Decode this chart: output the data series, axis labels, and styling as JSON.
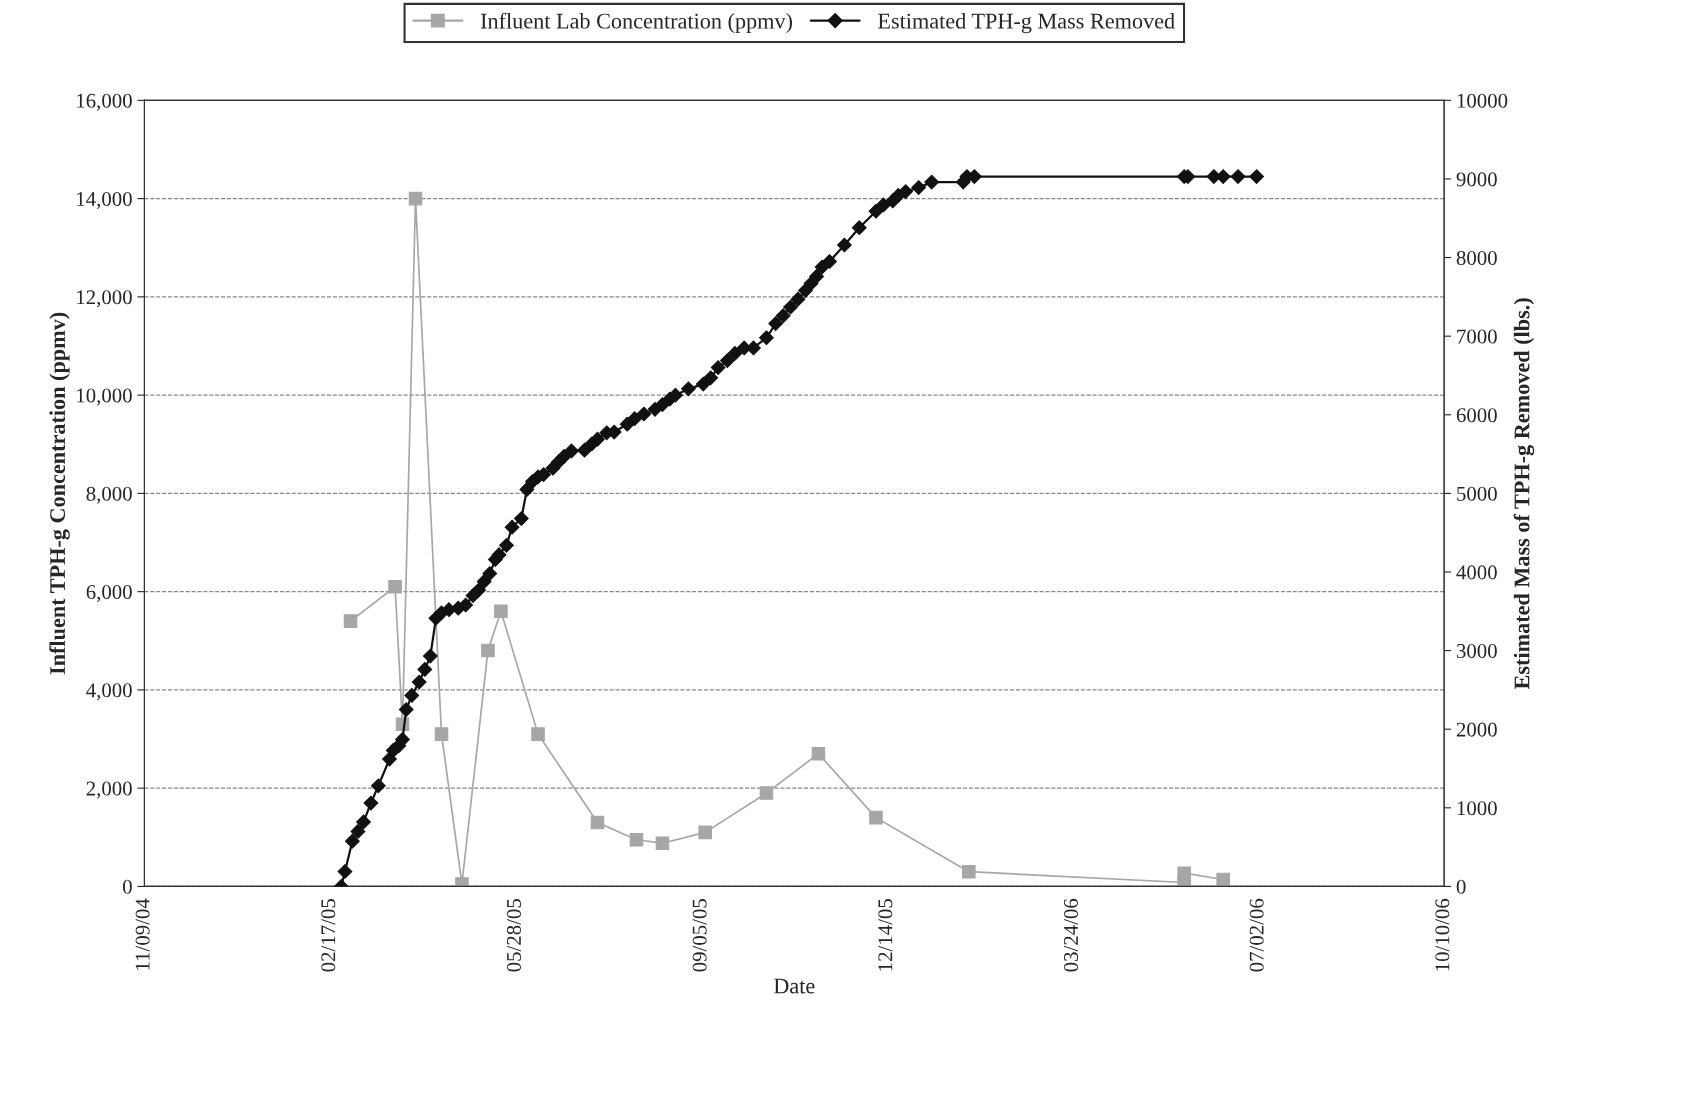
{
  "chart_data": {
    "type": "line",
    "xlabel": "Date",
    "ylabel": "Influent TPH-g Concentration (ppmv)",
    "y2label": "Estimated Mass of TPH-g Removed (lbs.)",
    "xlim": [
      "2004-11-09",
      "2006-10-10"
    ],
    "xticks": [
      {
        "value": "2004-11-09",
        "label": "11/09/04"
      },
      {
        "value": "2005-02-17",
        "label": "02/17/05"
      },
      {
        "value": "2005-05-28",
        "label": "05/28/05"
      },
      {
        "value": "2005-09-05",
        "label": "09/05/05"
      },
      {
        "value": "2005-12-14",
        "label": "12/14/05"
      },
      {
        "value": "2006-03-24",
        "label": "03/24/06"
      },
      {
        "value": "2006-07-02",
        "label": "07/02/06"
      },
      {
        "value": "2006-10-10",
        "label": "10/10/06"
      }
    ],
    "ylim": [
      0,
      16000
    ],
    "yticks": [
      0,
      {
        "value": 2000,
        "label": "2,000"
      },
      {
        "value": 4000,
        "label": "4,000"
      },
      {
        "value": 6000,
        "label": "6,000"
      },
      {
        "value": 8000,
        "label": "8,000"
      },
      {
        "value": 10000,
        "label": "10,000"
      },
      {
        "value": 12000,
        "label": "12,000"
      },
      {
        "value": 14000,
        "label": "14,000"
      },
      {
        "value": 16000,
        "label": "16,000"
      }
    ],
    "y2lim": [
      0,
      10000
    ],
    "y2ticks": [
      0,
      1000,
      2000,
      3000,
      4000,
      5000,
      6000,
      7000,
      8000,
      9000,
      10000
    ],
    "grid": "y",
    "legend": "top",
    "line_style": "solid",
    "series": [
      {
        "name": "Influent Lab Concentration (ppmv)",
        "color": "#a6a6a6",
        "marker": "square",
        "x": [
          "2005-02-28",
          "2005-03-24",
          "2005-03-28",
          "2005-04-04",
          "2005-04-18",
          "2005-04-29",
          "2005-05-13",
          "2005-05-20",
          "2005-06-09",
          "2005-07-11",
          "2005-08-01",
          "2005-08-15",
          "2005-09-07",
          "2005-10-10",
          "2005-11-07",
          "2005-12-08",
          "2006-01-27",
          "2006-05-23",
          "2006-05-23",
          "2006-06-13"
        ],
        "values": [
          5400,
          6100,
          3300,
          14000,
          3100,
          50,
          4800,
          5600,
          3100,
          1300,
          950,
          880,
          1100,
          1900,
          2700,
          1400,
          300,
          80,
          270,
          140
        ]
      },
      {
        "name": "Estimated TPH-g Mass Removed",
        "color": "#111111",
        "marker": "diamond",
        "axis": "y2",
        "x": [
          "2005-02-23",
          "2005-02-25",
          "2005-03-01",
          "2005-03-04",
          "2005-03-07",
          "2005-03-11",
          "2005-03-15",
          "2005-03-21",
          "2005-03-23",
          "2005-03-26",
          "2005-03-28",
          "2005-03-30",
          "2005-04-02",
          "2005-04-06",
          "2005-04-09",
          "2005-04-12",
          "2005-04-15",
          "2005-04-18",
          "2005-04-22",
          "2005-04-27",
          "2005-05-01",
          "2005-05-05",
          "2005-05-08",
          "2005-05-11",
          "2005-05-14",
          "2005-05-17",
          "2005-05-19",
          "2005-05-23",
          "2005-05-26",
          "2005-05-31",
          "2005-06-03",
          "2005-06-06",
          "2005-06-09",
          "2005-06-12",
          "2005-06-17",
          "2005-06-20",
          "2005-06-23",
          "2005-06-27",
          "2005-07-04",
          "2005-07-08",
          "2005-07-11",
          "2005-07-16",
          "2005-07-20",
          "2005-07-27",
          "2005-07-31",
          "2005-08-05",
          "2005-08-11",
          "2005-08-15",
          "2005-08-19",
          "2005-08-22",
          "2005-08-29",
          "2005-09-06",
          "2005-09-10",
          "2005-09-14",
          "2005-09-19",
          "2005-09-23",
          "2005-09-28",
          "2005-10-03",
          "2005-10-10",
          "2005-10-15",
          "2005-10-19",
          "2005-10-23",
          "2005-10-27",
          "2005-10-31",
          "2005-11-03",
          "2005-11-06",
          "2005-11-09",
          "2005-11-13",
          "2005-11-21",
          "2005-11-29",
          "2005-12-08",
          "2005-12-12",
          "2005-12-17",
          "2005-12-20",
          "2005-12-24",
          "2005-12-31",
          "2006-01-07",
          "2006-01-24",
          "2006-01-26",
          "2006-01-30",
          "2006-05-23",
          "2006-05-25",
          "2006-06-08",
          "2006-06-13",
          "2006-06-21",
          "2006-07-01"
        ],
        "values": [
          0,
          190,
          575,
          700,
          820,
          1060,
          1280,
          1620,
          1730,
          1790,
          1870,
          2250,
          2430,
          2600,
          2760,
          2930,
          3410,
          3480,
          3520,
          3540,
          3580,
          3700,
          3770,
          3880,
          3980,
          4160,
          4220,
          4340,
          4570,
          4680,
          5050,
          5150,
          5210,
          5240,
          5320,
          5400,
          5470,
          5540,
          5550,
          5630,
          5690,
          5770,
          5780,
          5880,
          5950,
          6010,
          6070,
          6130,
          6200,
          6250,
          6330,
          6390,
          6470,
          6600,
          6690,
          6780,
          6850,
          6850,
          6980,
          7160,
          7260,
          7370,
          7470,
          7580,
          7670,
          7760,
          7880,
          7950,
          8160,
          8380,
          8590,
          8670,
          8720,
          8790,
          8840,
          8890,
          8960,
          8960,
          9030,
          9030,
          9030,
          9030,
          9030,
          9030,
          9030,
          9030
        ]
      }
    ]
  }
}
